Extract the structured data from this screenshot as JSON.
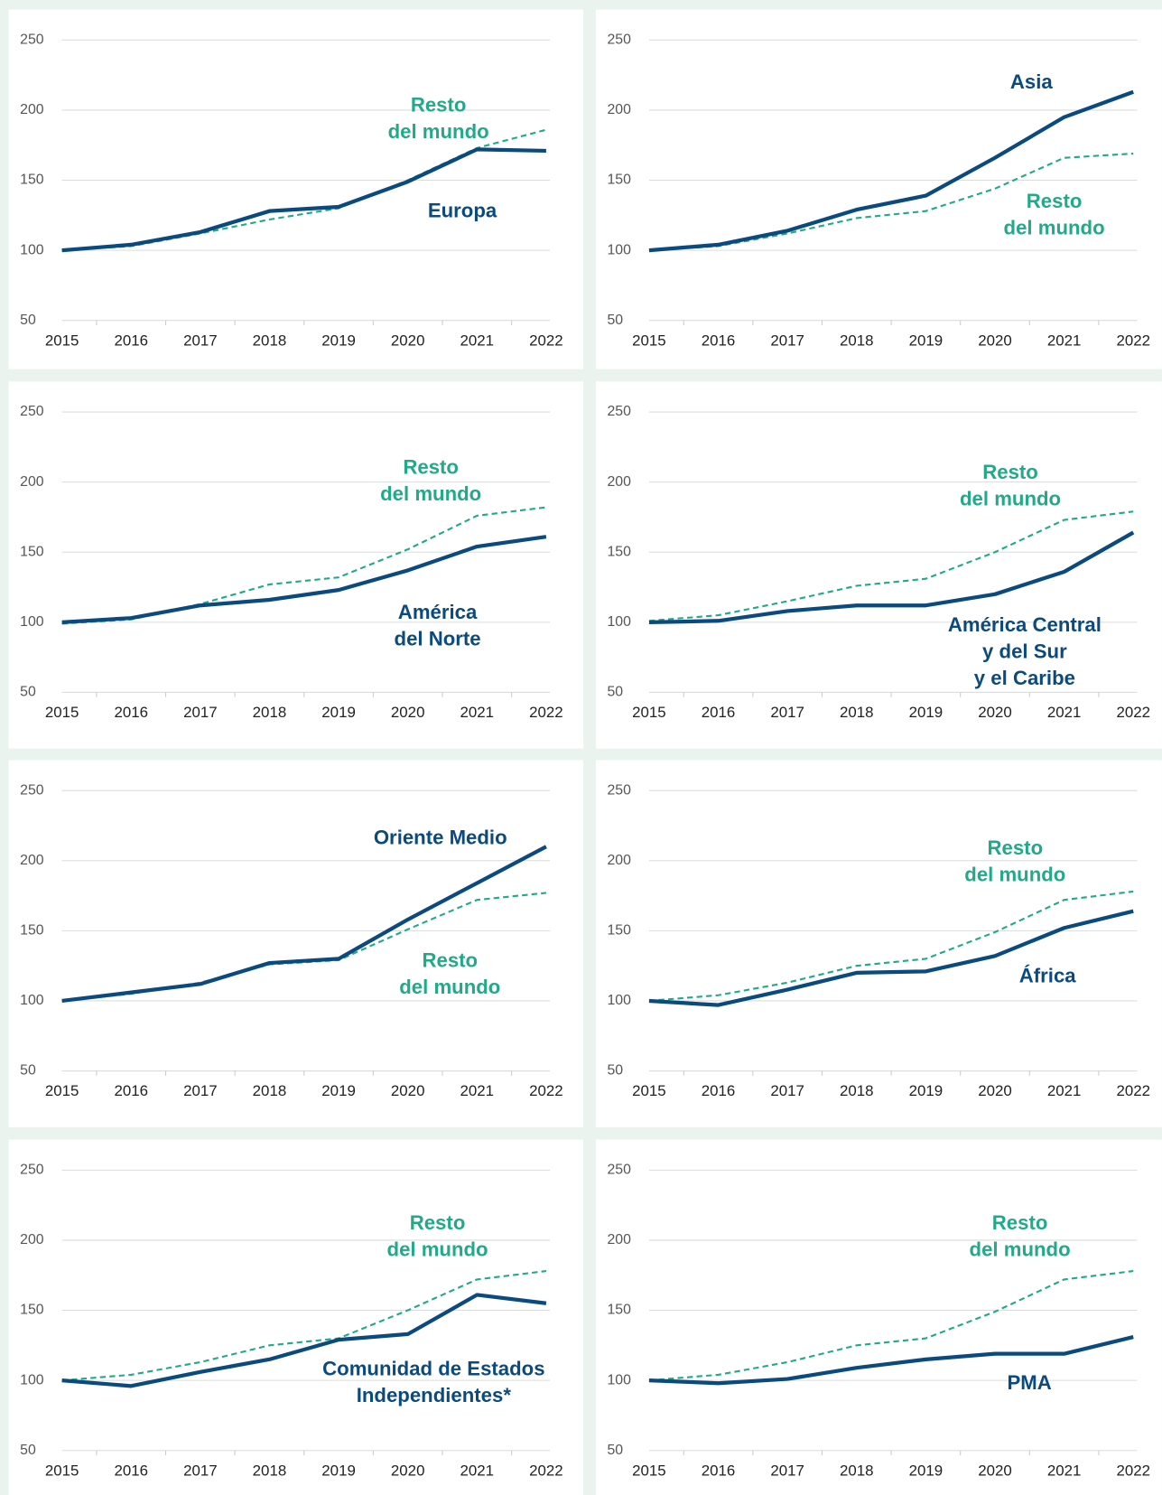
{
  "chart_data": [
    {
      "type": "line",
      "categories": [
        "2015",
        "2016",
        "2017",
        "2018",
        "2019",
        "2020",
        "2021",
        "2022"
      ],
      "ylim": [
        50,
        250
      ],
      "yticks": [
        50,
        100,
        150,
        200,
        250
      ],
      "grid": true,
      "series": [
        {
          "name": "Europa",
          "color": "#0b4a7e",
          "dash": false,
          "values": [
            100,
            104,
            113,
            128,
            131,
            149,
            172,
            171
          ]
        },
        {
          "name": "Resto\ndel mundo",
          "color": "#21a98a",
          "dash": true,
          "values": [
            100,
            103,
            112,
            122,
            130,
            150,
            173,
            186
          ]
        }
      ]
    },
    {
      "type": "line",
      "categories": [
        "2015",
        "2016",
        "2017",
        "2018",
        "2019",
        "2020",
        "2021",
        "2022"
      ],
      "ylim": [
        50,
        250
      ],
      "yticks": [
        50,
        100,
        150,
        200,
        250
      ],
      "grid": true,
      "series": [
        {
          "name": "Asia",
          "color": "#0b4a7e",
          "dash": false,
          "values": [
            100,
            104,
            114,
            129,
            139,
            166,
            195,
            213
          ]
        },
        {
          "name": "Resto\ndel mundo",
          "color": "#21a98a",
          "dash": true,
          "values": [
            100,
            103,
            112,
            123,
            128,
            144,
            166,
            169
          ]
        }
      ]
    },
    {
      "type": "line",
      "categories": [
        "2015",
        "2016",
        "2017",
        "2018",
        "2019",
        "2020",
        "2021",
        "2022"
      ],
      "ylim": [
        50,
        250
      ],
      "yticks": [
        50,
        100,
        150,
        200,
        250
      ],
      "grid": true,
      "series": [
        {
          "name": "América\ndel Norte",
          "color": "#0b4a7e",
          "dash": false,
          "values": [
            100,
            103,
            112,
            116,
            123,
            137,
            154,
            161
          ]
        },
        {
          "name": "Resto\ndel mundo",
          "color": "#21a98a",
          "dash": true,
          "values": [
            99,
            102,
            113,
            127,
            132,
            152,
            176,
            182
          ]
        }
      ]
    },
    {
      "type": "line",
      "categories": [
        "2015",
        "2016",
        "2017",
        "2018",
        "2019",
        "2020",
        "2021",
        "2022"
      ],
      "ylim": [
        50,
        250
      ],
      "yticks": [
        50,
        100,
        150,
        200,
        250
      ],
      "grid": true,
      "series": [
        {
          "name": "América Central\ny del Sur\ny el Caribe",
          "color": "#0b4a7e",
          "dash": false,
          "values": [
            100,
            101,
            108,
            112,
            112,
            120,
            136,
            164
          ]
        },
        {
          "name": "Resto\ndel mundo",
          "color": "#21a98a",
          "dash": true,
          "values": [
            101,
            105,
            115,
            126,
            131,
            150,
            173,
            179
          ]
        }
      ]
    },
    {
      "type": "line",
      "categories": [
        "2015",
        "2016",
        "2017",
        "2018",
        "2019",
        "2020",
        "2021",
        "2022"
      ],
      "ylim": [
        50,
        250
      ],
      "yticks": [
        50,
        100,
        150,
        200,
        250
      ],
      "grid": true,
      "series": [
        {
          "name": "Oriente Medio",
          "color": "#0b4a7e",
          "dash": false,
          "values": [
            100,
            106,
            112,
            127,
            130,
            158,
            184,
            210
          ]
        },
        {
          "name": "Resto\ndel mundo",
          "color": "#21a98a",
          "dash": true,
          "values": [
            100,
            105,
            113,
            126,
            129,
            151,
            172,
            177
          ]
        }
      ]
    },
    {
      "type": "line",
      "categories": [
        "2015",
        "2016",
        "2017",
        "2018",
        "2019",
        "2020",
        "2021",
        "2022"
      ],
      "ylim": [
        50,
        250
      ],
      "yticks": [
        50,
        100,
        150,
        200,
        250
      ],
      "grid": true,
      "series": [
        {
          "name": "África",
          "color": "#0b4a7e",
          "dash": false,
          "values": [
            100,
            97,
            108,
            120,
            121,
            132,
            152,
            164
          ]
        },
        {
          "name": "Resto\ndel mundo",
          "color": "#21a98a",
          "dash": true,
          "values": [
            100,
            104,
            113,
            125,
            130,
            149,
            172,
            178
          ]
        }
      ]
    },
    {
      "type": "line",
      "categories": [
        "2015",
        "2016",
        "2017",
        "2018",
        "2019",
        "2020",
        "2021",
        "2022"
      ],
      "ylim": [
        50,
        250
      ],
      "yticks": [
        50,
        100,
        150,
        200,
        250
      ],
      "grid": true,
      "series": [
        {
          "name": "Comunidad de Estados\nIndependientes*",
          "color": "#0b4a7e",
          "dash": false,
          "values": [
            100,
            96,
            106,
            115,
            129,
            133,
            161,
            155
          ]
        },
        {
          "name": "Resto\ndel mundo",
          "color": "#21a98a",
          "dash": true,
          "values": [
            100,
            104,
            113,
            125,
            130,
            150,
            172,
            178
          ]
        }
      ]
    },
    {
      "type": "line",
      "categories": [
        "2015",
        "2016",
        "2017",
        "2018",
        "2019",
        "2020",
        "2021",
        "2022"
      ],
      "ylim": [
        50,
        250
      ],
      "yticks": [
        50,
        100,
        150,
        200,
        250
      ],
      "grid": true,
      "series": [
        {
          "name": "PMA",
          "color": "#0b4a7e",
          "dash": false,
          "values": [
            100,
            98,
            101,
            109,
            115,
            119,
            119,
            131
          ]
        },
        {
          "name": "Resto\ndel mundo",
          "color": "#21a98a",
          "dash": true,
          "values": [
            100,
            104,
            113,
            125,
            130,
            149,
            172,
            178
          ]
        }
      ]
    }
  ]
}
